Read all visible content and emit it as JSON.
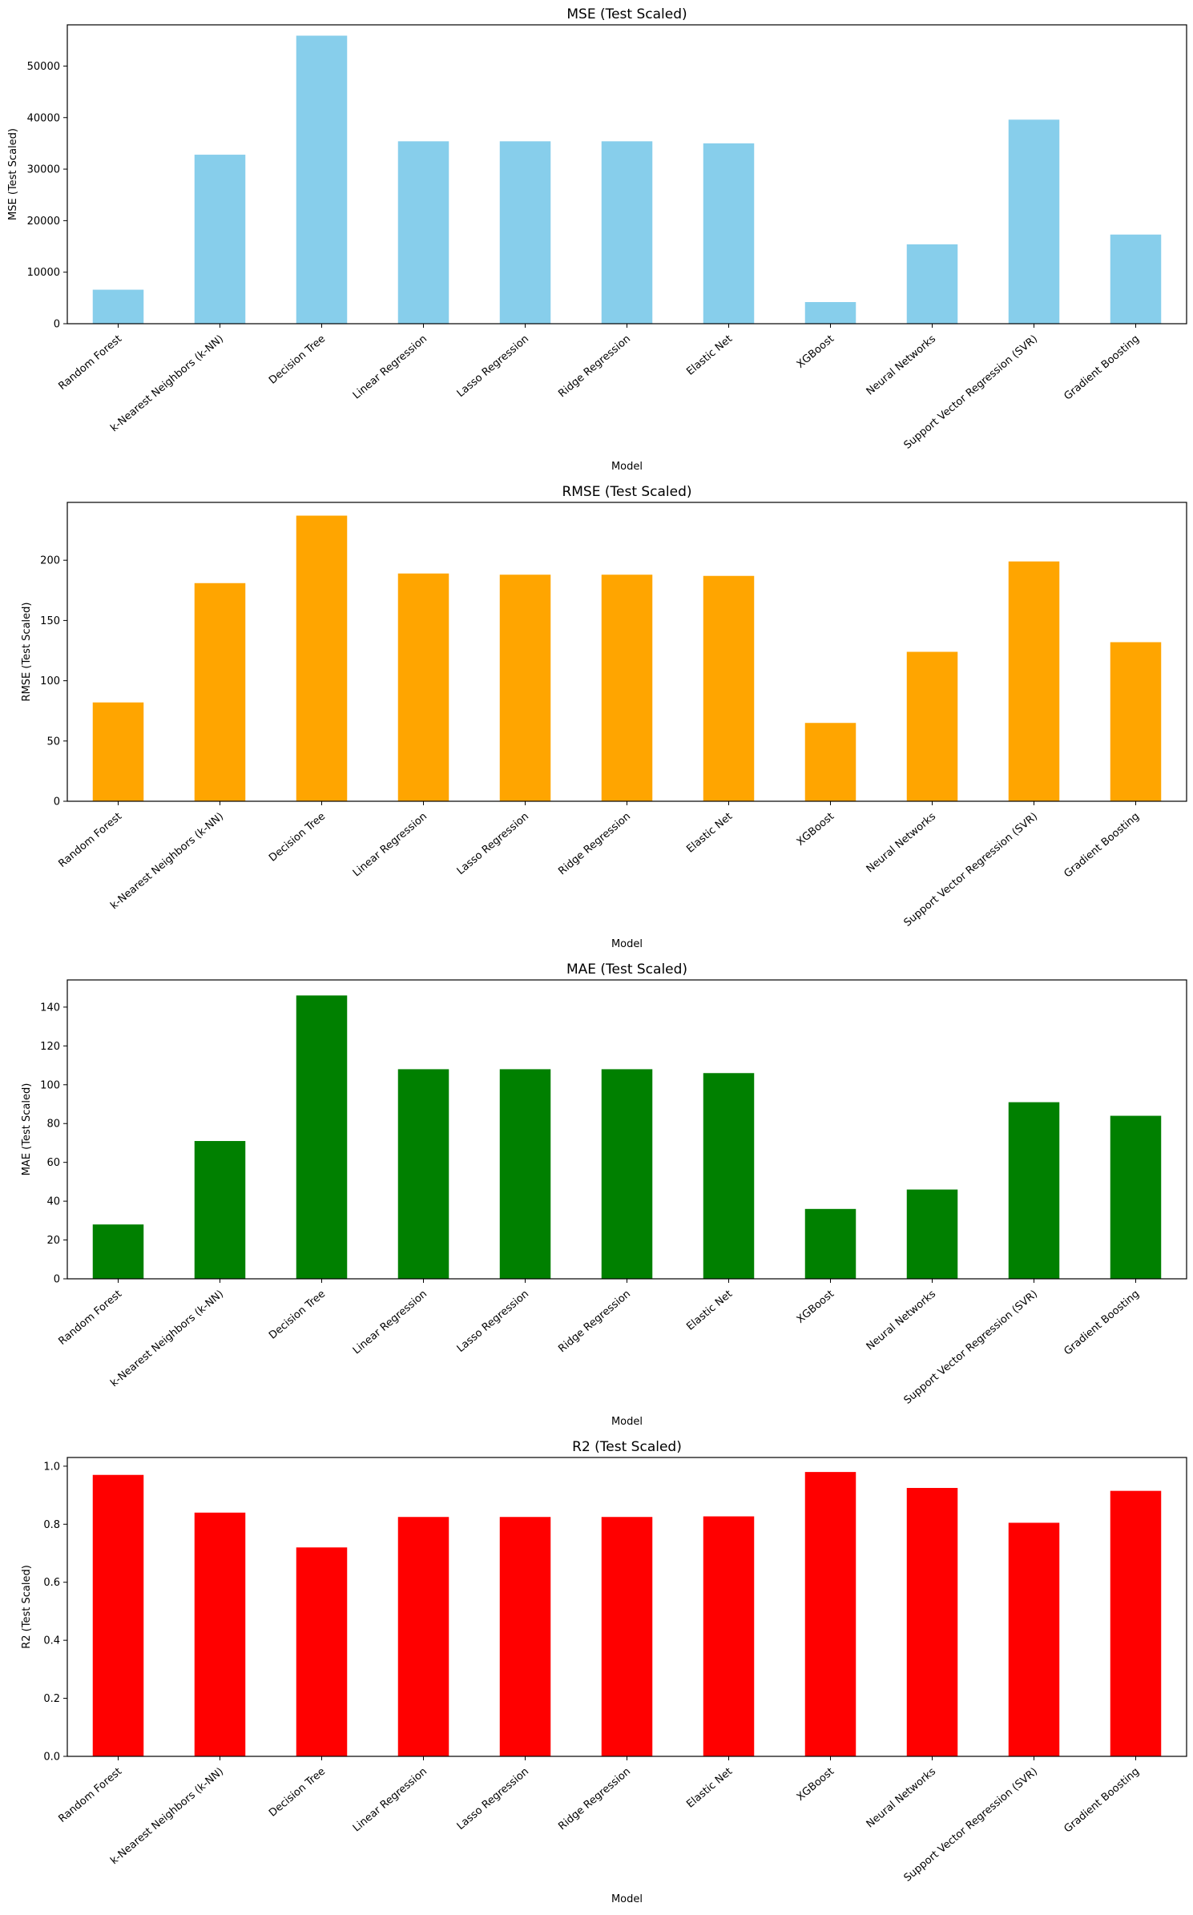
{
  "chart_data": [
    {
      "type": "bar",
      "title": "MSE (Test Scaled)",
      "xlabel": "Model",
      "ylabel": "MSE (Test Scaled)",
      "color": "#87CEEB",
      "ylim": [
        0,
        58000
      ],
      "yticks": [
        0,
        10000,
        20000,
        30000,
        40000,
        50000
      ],
      "ytick_labels": [
        "0",
        "10000",
        "20000",
        "30000",
        "40000",
        "50000"
      ],
      "categories": [
        "Random Forest",
        "k-Nearest Neighbors (k-NN)",
        "Decision Tree",
        "Linear Regression",
        "Lasso Regression",
        "Ridge Regression",
        "Elastic Net",
        "XGBoost",
        "Neural Networks",
        "Support Vector Regression (SVR)",
        "Gradient Boosting"
      ],
      "values": [
        6600,
        32800,
        55900,
        35400,
        35400,
        35400,
        35000,
        4200,
        15400,
        39600,
        17300
      ],
      "grid": false
    },
    {
      "type": "bar",
      "title": "RMSE (Test Scaled)",
      "xlabel": "Model",
      "ylabel": "RMSE (Test Scaled)",
      "color": "#FFA500",
      "ylim": [
        0,
        248
      ],
      "yticks": [
        0,
        50,
        100,
        150,
        200
      ],
      "ytick_labels": [
        "0",
        "50",
        "100",
        "150",
        "200"
      ],
      "categories": [
        "Random Forest",
        "k-Nearest Neighbors (k-NN)",
        "Decision Tree",
        "Linear Regression",
        "Lasso Regression",
        "Ridge Regression",
        "Elastic Net",
        "XGBoost",
        "Neural Networks",
        "Support Vector Regression (SVR)",
        "Gradient Boosting"
      ],
      "values": [
        82,
        181,
        237,
        189,
        188,
        188,
        187,
        65,
        124,
        199,
        132
      ],
      "grid": false
    },
    {
      "type": "bar",
      "title": "MAE (Test Scaled)",
      "xlabel": "Model",
      "ylabel": "MAE (Test Scaled)",
      "color": "#008000",
      "ylim": [
        0,
        154
      ],
      "yticks": [
        0,
        20,
        40,
        60,
        80,
        100,
        120,
        140
      ],
      "ytick_labels": [
        "0",
        "20",
        "40",
        "60",
        "80",
        "100",
        "120",
        "140"
      ],
      "categories": [
        "Random Forest",
        "k-Nearest Neighbors (k-NN)",
        "Decision Tree",
        "Linear Regression",
        "Lasso Regression",
        "Ridge Regression",
        "Elastic Net",
        "XGBoost",
        "Neural Networks",
        "Support Vector Regression (SVR)",
        "Gradient Boosting"
      ],
      "values": [
        28,
        71,
        146,
        108,
        108,
        108,
        106,
        36,
        46,
        91,
        84
      ],
      "grid": false
    },
    {
      "type": "bar",
      "title": "R2 (Test Scaled)",
      "xlabel": "Model",
      "ylabel": "R2 (Test Scaled)",
      "color": "#FF0000",
      "ylim": [
        0,
        1.03
      ],
      "yticks": [
        0.0,
        0.2,
        0.4,
        0.6,
        0.8,
        1.0
      ],
      "ytick_labels": [
        "0.0",
        "0.2",
        "0.4",
        "0.6",
        "0.8",
        "1.0"
      ],
      "categories": [
        "Random Forest",
        "k-Nearest Neighbors (k-NN)",
        "Decision Tree",
        "Linear Regression",
        "Lasso Regression",
        "Ridge Regression",
        "Elastic Net",
        "XGBoost",
        "Neural Networks",
        "Support Vector Regression (SVR)",
        "Gradient Boosting"
      ],
      "values": [
        0.97,
        0.84,
        0.72,
        0.825,
        0.825,
        0.825,
        0.827,
        0.98,
        0.925,
        0.805,
        0.915
      ],
      "grid": false
    }
  ]
}
